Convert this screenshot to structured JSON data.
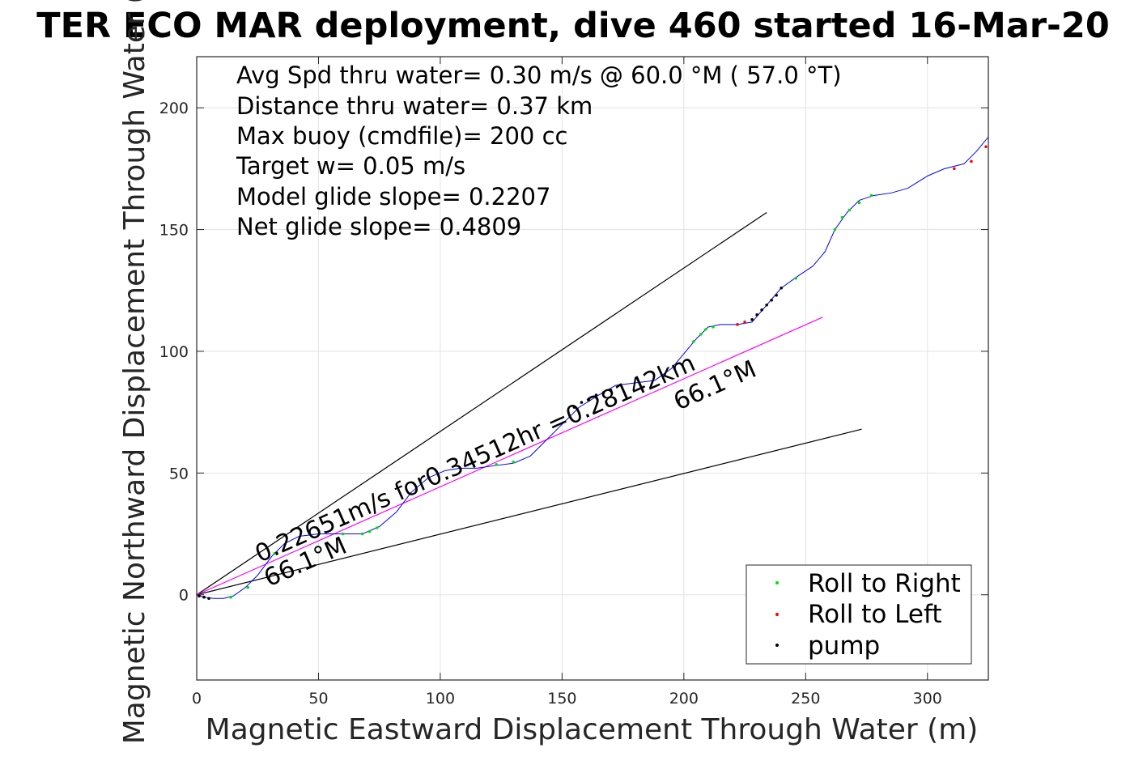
{
  "chart_data": {
    "type": "line",
    "title": "TER ECO MAR deployment, dive 460 started 16-Mar-20",
    "xlabel": "Magnetic Eastward Displacement Through Water (m)",
    "ylabel": "Magnetic Northward Displacement Through Water (",
    "xlim": [
      0,
      325
    ],
    "ylim": [
      -35,
      221
    ],
    "xticks": [
      0,
      50,
      100,
      150,
      200,
      250,
      300
    ],
    "yticks": [
      0,
      50,
      100,
      150,
      200
    ],
    "grid": true,
    "legend_position": "bottom-right",
    "annotations": [
      "Avg Spd thru water=  0.30 m/s @  60.0 °M ( 57.0 °T)",
      "Distance thru water=  0.37 km",
      "Max buoy (cmdfile)= 200 cc",
      "Target w= 0.05 m/s",
      "Model glide slope= 0.2207",
      "Net glide slope= 0.4809"
    ],
    "rotated_labels": {
      "speed": "0.22651m/s for0.34512hr =0.28142km",
      "heading_near": "66.1°M",
      "heading_far": "66.1°M"
    },
    "series": [
      {
        "name": "Roll to Right",
        "color": "#00dd00",
        "points": [
          [
            14,
            -1
          ],
          [
            21,
            3
          ],
          [
            32,
            17
          ],
          [
            60,
            25
          ],
          [
            68,
            25
          ],
          [
            71,
            26
          ],
          [
            74,
            27.5
          ],
          [
            123,
            53.5
          ],
          [
            130,
            54.5
          ],
          [
            204,
            104
          ],
          [
            207,
            107
          ],
          [
            209,
            109
          ],
          [
            212,
            110
          ],
          [
            246,
            130
          ],
          [
            262,
            150
          ],
          [
            265,
            155
          ],
          [
            268,
            158
          ],
          [
            272,
            161
          ],
          [
            277,
            164
          ]
        ]
      },
      {
        "name": "Roll to Left",
        "color": "#ff0000",
        "points": [
          [
            222,
            111
          ],
          [
            225,
            112
          ],
          [
            311,
            175
          ],
          [
            318,
            178
          ],
          [
            324,
            184
          ]
        ]
      },
      {
        "name": "pump",
        "color": "#000000",
        "points": [
          [
            1,
            -0.5
          ],
          [
            3,
            -1
          ],
          [
            5,
            -1.5
          ],
          [
            155,
            77
          ],
          [
            158,
            79
          ],
          [
            161,
            80
          ],
          [
            164,
            82
          ],
          [
            167,
            83
          ],
          [
            170,
            84
          ],
          [
            228,
            113
          ],
          [
            230,
            115
          ],
          [
            232,
            117
          ],
          [
            234,
            119
          ],
          [
            236,
            121
          ],
          [
            238,
            123
          ],
          [
            240,
            126
          ]
        ]
      }
    ],
    "track": {
      "color": "#0000ff",
      "points": [
        [
          0,
          0
        ],
        [
          3,
          -1
        ],
        [
          7,
          -1.5
        ],
        [
          11,
          -1.5
        ],
        [
          15,
          -0.5
        ],
        [
          20,
          3
        ],
        [
          25,
          8
        ],
        [
          31,
          16
        ],
        [
          36,
          21
        ],
        [
          42,
          24
        ],
        [
          50,
          25
        ],
        [
          60,
          25
        ],
        [
          68,
          25
        ],
        [
          75,
          28
        ],
        [
          82,
          34
        ],
        [
          88,
          42
        ],
        [
          95,
          48
        ],
        [
          102,
          51
        ],
        [
          108,
          52
        ],
        [
          115,
          52
        ],
        [
          122,
          53
        ],
        [
          130,
          54
        ],
        [
          137,
          57
        ],
        [
          143,
          63
        ],
        [
          150,
          70
        ],
        [
          157,
          77
        ],
        [
          165,
          82
        ],
        [
          172,
          86
        ],
        [
          180,
          87
        ],
        [
          188,
          88
        ],
        [
          195,
          93
        ],
        [
          200,
          99
        ],
        [
          205,
          105
        ],
        [
          210,
          110
        ],
        [
          215,
          111
        ],
        [
          222,
          111
        ],
        [
          228,
          112
        ],
        [
          234,
          119
        ],
        [
          240,
          126
        ],
        [
          247,
          131
        ],
        [
          253,
          135
        ],
        [
          258,
          141
        ],
        [
          262,
          150
        ],
        [
          267,
          157
        ],
        [
          272,
          162
        ],
        [
          278,
          164
        ],
        [
          285,
          165
        ],
        [
          292,
          167
        ],
        [
          300,
          172
        ],
        [
          307,
          175
        ],
        [
          315,
          177
        ],
        [
          320,
          182
        ],
        [
          325,
          188
        ]
      ]
    },
    "reference_lines": [
      {
        "color": "#000000",
        "points": [
          [
            0,
            0
          ],
          [
            234,
            157
          ]
        ]
      },
      {
        "color": "#000000",
        "points": [
          [
            0,
            0
          ],
          [
            273,
            68
          ]
        ]
      },
      {
        "color": "#ff00ff",
        "points": [
          [
            0,
            0
          ],
          [
            257,
            114
          ]
        ]
      }
    ]
  }
}
